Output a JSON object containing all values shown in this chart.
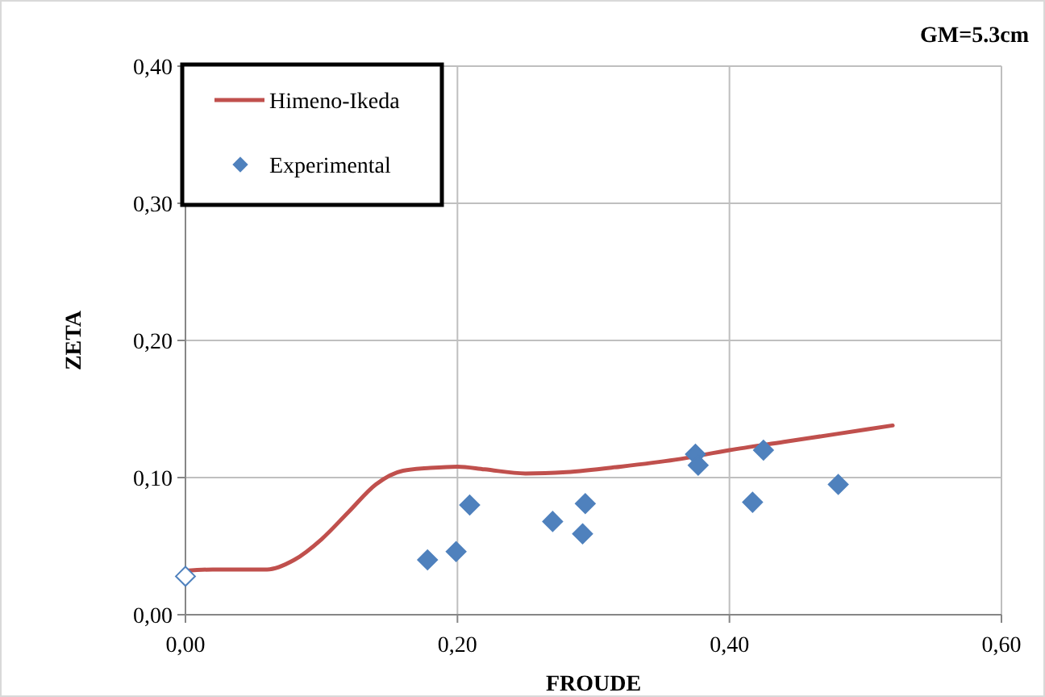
{
  "chart_data": {
    "type": "scatter",
    "xlabel": "FROUDE",
    "ylabel": "ZETA",
    "annotations": [
      "GM=5.3cm"
    ],
    "xlim": [
      0,
      0.6
    ],
    "ylim": [
      0,
      0.4
    ],
    "xticks": [
      {
        "value": 0,
        "label": "0,00"
      },
      {
        "value": 0.2,
        "label": "0,20"
      },
      {
        "value": 0.4,
        "label": "0,40"
      },
      {
        "value": 0.6,
        "label": "0,60"
      }
    ],
    "yticks": [
      {
        "value": 0,
        "label": "0,00"
      },
      {
        "value": 0.1,
        "label": "0,10"
      },
      {
        "value": 0.2,
        "label": "0,20"
      },
      {
        "value": 0.3,
        "label": "0,30"
      },
      {
        "value": 0.4,
        "label": "0,40"
      }
    ],
    "grid": true,
    "legend": "top left",
    "series": [
      {
        "name": "Himeno-Ikeda",
        "type": "line",
        "color": "#c0504d",
        "marker": "none",
        "line_style": "solid",
        "x": [
          0,
          0.02,
          0.04,
          0.06,
          0.08,
          0.1,
          0.12,
          0.14,
          0.16,
          0.18,
          0.2,
          0.22,
          0.25,
          0.28,
          0.32,
          0.36,
          0.4,
          0.44,
          0.48,
          0.52
        ],
        "values": [
          0.032,
          0.033,
          0.033,
          0.033,
          0.04,
          0.055,
          0.075,
          0.095,
          0.105,
          0.107,
          0.108,
          0.106,
          0.103,
          0.104,
          0.108,
          0.113,
          0.12,
          0.126,
          0.132,
          0.138
        ]
      },
      {
        "name": "Experimental",
        "type": "scatter",
        "color": "#4f81bd",
        "marker": "diamond",
        "x": [
          0.178,
          0.199,
          0.209,
          0.27,
          0.292,
          0.294,
          0.375,
          0.377,
          0.417,
          0.425,
          0.48
        ],
        "values": [
          0.04,
          0.046,
          0.08,
          0.068,
          0.059,
          0.081,
          0.117,
          0.109,
          0.082,
          0.12,
          0.095
        ]
      },
      {
        "type": "scatter",
        "color": "#4f81bd",
        "marker": "diamond",
        "x": [
          0
        ],
        "values": [
          0.028
        ]
      }
    ]
  }
}
